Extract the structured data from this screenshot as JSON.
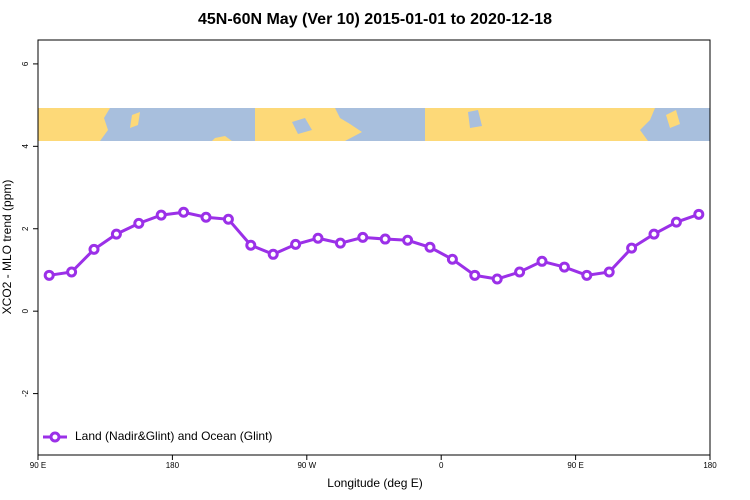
{
  "chart_data": {
    "type": "line",
    "title": "45N-60N May (Ver 10)   2015-01-01 to 2020-12-18",
    "x_label": "Longitude (deg E)",
    "y_label": "XCO2 - MLO trend (ppm)",
    "x": [
      97.5,
      112.5,
      127.5,
      142.5,
      157.5,
      172.5,
      187.5,
      202.5,
      217.5,
      232.5,
      247.5,
      262.5,
      277.5,
      292.5,
      307.5,
      322.5,
      337.5,
      352.5,
      367.5,
      382.5,
      397.5,
      412.5,
      427.5,
      442.5,
      457.5,
      472.5,
      487.5,
      502.5,
      517.5,
      532.5
    ],
    "series": [
      {
        "name": "Land (Nadir&Glint) and Ocean (Glint)",
        "color": "#9b30e8",
        "values": [
          0.87,
          0.95,
          1.5,
          1.87,
          2.13,
          2.33,
          2.4,
          2.28,
          2.23,
          1.6,
          1.38,
          1.62,
          1.77,
          1.65,
          1.79,
          1.75,
          1.72,
          1.55,
          1.26,
          0.87,
          0.78,
          0.95,
          1.21,
          1.07,
          0.87,
          0.95,
          1.53,
          1.87,
          2.16,
          2.35
        ]
      }
    ],
    "xlim": [
      90,
      540
    ],
    "xticks": [
      {
        "value": 90,
        "label": "90 E"
      },
      {
        "value": 180,
        "label": "180"
      },
      {
        "value": 270,
        "label": "90 W"
      },
      {
        "value": 360,
        "label": "0"
      },
      {
        "value": 450,
        "label": "90 E"
      },
      {
        "value": 540,
        "label": "180"
      }
    ],
    "ylim": [
      -3.49,
      6.58
    ],
    "yticks": [
      -2,
      0,
      2,
      4,
      6
    ],
    "legend": "bottom-left"
  }
}
